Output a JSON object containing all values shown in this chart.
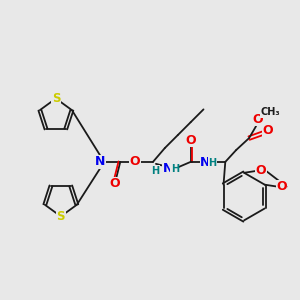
{
  "bg": "#e8e8e8",
  "C": "#1a1a1a",
  "S": "#cccc00",
  "N": "#0000ee",
  "O": "#ee0000",
  "H": "#008080",
  "lw": 1.3,
  "fs": 8.0
}
